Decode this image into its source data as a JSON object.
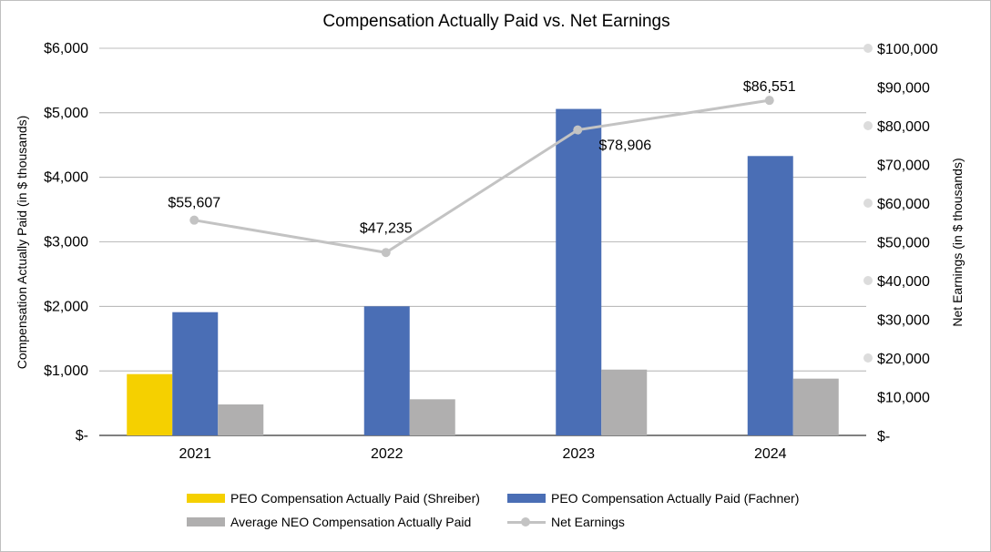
{
  "chart_data": {
    "type": "bar",
    "title": "Compensation Actually Paid vs. Net Earnings",
    "categories": [
      "2021",
      "2022",
      "2023",
      "2024"
    ],
    "ylabel": "Compensation Actually Paid (in $ thousands)",
    "y2label": "Net Earnings (in $ thousands)",
    "ylim": [
      0,
      6000
    ],
    "y2lim": [
      0,
      100000
    ],
    "yticks": [
      "$-",
      "$1,000",
      "$2,000",
      "$3,000",
      "$4,000",
      "$5,000",
      "$6,000"
    ],
    "y2ticks": [
      "$-",
      "$10,000",
      "$20,000",
      "$30,000",
      "$40,000",
      "$50,000",
      "$60,000",
      "$70,000",
      "$80,000",
      "$90,000",
      "$100,000"
    ],
    "series": [
      {
        "name": "PEO Compensation Actually Paid (Shreiber)",
        "type": "bar",
        "color": "#f5d000",
        "values": [
          950,
          null,
          null,
          null
        ]
      },
      {
        "name": "PEO Compensation Actually Paid (Fachner)",
        "type": "bar",
        "color": "#4a6eb5",
        "values": [
          1910,
          2000,
          5060,
          4330
        ]
      },
      {
        "name": "Average NEO Compensation Actually Paid",
        "type": "bar",
        "color": "#b0afaf",
        "values": [
          480,
          560,
          1020,
          880
        ]
      },
      {
        "name": "Net Earnings",
        "type": "line",
        "axis": "right",
        "color": "#c3c3c3",
        "values": [
          55607,
          47235,
          78906,
          86551
        ],
        "labels": [
          "$55,607",
          "$47,235",
          "$78,906",
          "$86,551"
        ]
      }
    ],
    "legend": "bottom"
  }
}
